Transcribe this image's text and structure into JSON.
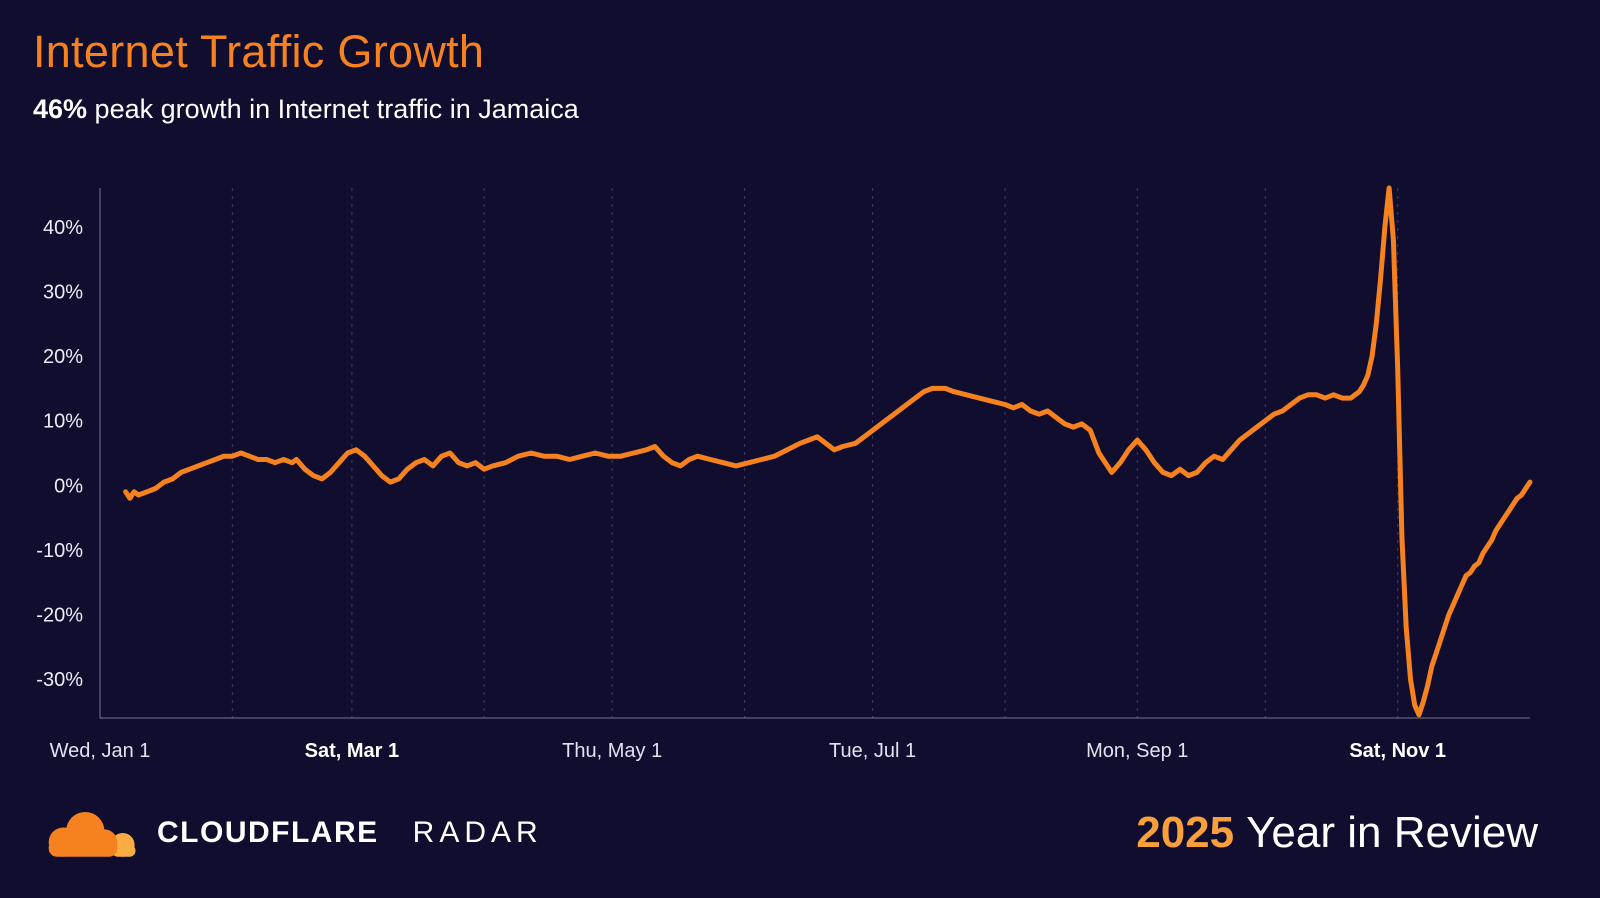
{
  "header": {
    "title": "Internet Traffic Growth",
    "subtitle_highlight": "46%",
    "subtitle_rest": " peak growth in Internet traffic in Jamaica"
  },
  "footer": {
    "brand": "CLOUDFLARE",
    "product": "RADAR",
    "year": "2025",
    "review_label": "Year in Review"
  },
  "colors": {
    "background": "#100d2e",
    "accent_orange": "#f6821f",
    "accent_orange_light": "#fbad41",
    "year_orange": "#f9a03c",
    "text": "#ffffff",
    "gridline": "#403e66"
  },
  "chart_data": {
    "type": "line",
    "title": "Internet Traffic Growth",
    "subtitle": "46% peak growth in Internet traffic in Jamaica",
    "region": "Jamaica",
    "peak_growth_percent": 46,
    "x_unit": "day_of_year_2025",
    "xlim": [
      0,
      335
    ],
    "ylim": [
      -36,
      46
    ],
    "grid": "vertical-dashed-monthly",
    "legend": "none",
    "line_color": "#f6821f",
    "y_ticks": [
      {
        "value": 40,
        "label": "40%"
      },
      {
        "value": 30,
        "label": "30%"
      },
      {
        "value": 20,
        "label": "20%"
      },
      {
        "value": 10,
        "label": "10%"
      },
      {
        "value": 0,
        "label": "0%"
      },
      {
        "value": -10,
        "label": "-10%"
      },
      {
        "value": -20,
        "label": "-20%"
      },
      {
        "value": -30,
        "label": "-30%"
      }
    ],
    "x_ticks": [
      {
        "day": 0,
        "label": "Wed, Jan 1",
        "bold": false
      },
      {
        "day": 59,
        "label": "Sat, Mar 1",
        "bold": true
      },
      {
        "day": 120,
        "label": "Thu, May 1",
        "bold": false
      },
      {
        "day": 181,
        "label": "Tue, Jul 1",
        "bold": false
      },
      {
        "day": 243,
        "label": "Mon, Sep 1",
        "bold": false
      },
      {
        "day": 304,
        "label": "Sat, Nov 1",
        "bold": true
      }
    ],
    "gridline_days": [
      31,
      59,
      90,
      120,
      151,
      181,
      212,
      243,
      273,
      304
    ],
    "series": [
      {
        "name": "Internet traffic growth (%)",
        "points": [
          [
            6,
            -1
          ],
          [
            7,
            -2
          ],
          [
            8,
            -1
          ],
          [
            9,
            -1.5
          ],
          [
            11,
            -1
          ],
          [
            13,
            -0.5
          ],
          [
            15,
            0.5
          ],
          [
            17,
            1
          ],
          [
            19,
            2
          ],
          [
            21,
            2.5
          ],
          [
            23,
            3
          ],
          [
            25,
            3.5
          ],
          [
            27,
            4
          ],
          [
            29,
            4.5
          ],
          [
            31,
            4.5
          ],
          [
            33,
            5
          ],
          [
            35,
            4.5
          ],
          [
            37,
            4
          ],
          [
            39,
            4
          ],
          [
            41,
            3.5
          ],
          [
            43,
            4
          ],
          [
            45,
            3.5
          ],
          [
            46,
            4
          ],
          [
            48,
            2.5
          ],
          [
            50,
            1.5
          ],
          [
            52,
            1
          ],
          [
            54,
            2
          ],
          [
            56,
            3.5
          ],
          [
            58,
            5
          ],
          [
            60,
            5.5
          ],
          [
            62,
            4.5
          ],
          [
            64,
            3
          ],
          [
            66,
            1.5
          ],
          [
            68,
            0.5
          ],
          [
            70,
            1
          ],
          [
            72,
            2.5
          ],
          [
            74,
            3.5
          ],
          [
            76,
            4
          ],
          [
            78,
            3
          ],
          [
            80,
            4.5
          ],
          [
            82,
            5
          ],
          [
            84,
            3.5
          ],
          [
            86,
            3
          ],
          [
            88,
            3.5
          ],
          [
            90,
            2.5
          ],
          [
            92,
            3
          ],
          [
            95,
            3.5
          ],
          [
            98,
            4.5
          ],
          [
            101,
            5
          ],
          [
            104,
            4.5
          ],
          [
            107,
            4.5
          ],
          [
            110,
            4
          ],
          [
            113,
            4.5
          ],
          [
            116,
            5
          ],
          [
            119,
            4.5
          ],
          [
            122,
            4.5
          ],
          [
            125,
            5
          ],
          [
            128,
            5.5
          ],
          [
            130,
            6
          ],
          [
            132,
            4.5
          ],
          [
            134,
            3.5
          ],
          [
            136,
            3
          ],
          [
            138,
            4
          ],
          [
            140,
            4.5
          ],
          [
            143,
            4
          ],
          [
            146,
            3.5
          ],
          [
            149,
            3
          ],
          [
            152,
            3.5
          ],
          [
            155,
            4
          ],
          [
            158,
            4.5
          ],
          [
            161,
            5.5
          ],
          [
            164,
            6.5
          ],
          [
            166,
            7
          ],
          [
            168,
            7.5
          ],
          [
            170,
            6.5
          ],
          [
            172,
            5.5
          ],
          [
            174,
            6
          ],
          [
            177,
            6.5
          ],
          [
            180,
            8
          ],
          [
            183,
            9.5
          ],
          [
            186,
            11
          ],
          [
            189,
            12.5
          ],
          [
            191,
            13.5
          ],
          [
            193,
            14.5
          ],
          [
            195,
            15
          ],
          [
            198,
            15
          ],
          [
            200,
            14.5
          ],
          [
            203,
            14
          ],
          [
            206,
            13.5
          ],
          [
            209,
            13
          ],
          [
            212,
            12.5
          ],
          [
            214,
            12
          ],
          [
            216,
            12.5
          ],
          [
            218,
            11.5
          ],
          [
            220,
            11
          ],
          [
            222,
            11.5
          ],
          [
            224,
            10.5
          ],
          [
            226,
            9.5
          ],
          [
            228,
            9
          ],
          [
            230,
            9.5
          ],
          [
            232,
            8.5
          ],
          [
            234,
            5
          ],
          [
            236,
            3
          ],
          [
            237,
            2
          ],
          [
            239,
            3.5
          ],
          [
            241,
            5.5
          ],
          [
            243,
            7
          ],
          [
            245,
            5.5
          ],
          [
            247,
            3.5
          ],
          [
            249,
            2
          ],
          [
            251,
            1.5
          ],
          [
            253,
            2.5
          ],
          [
            255,
            1.5
          ],
          [
            257,
            2
          ],
          [
            259,
            3.5
          ],
          [
            261,
            4.5
          ],
          [
            263,
            4
          ],
          [
            265,
            5.5
          ],
          [
            267,
            7
          ],
          [
            269,
            8
          ],
          [
            271,
            9
          ],
          [
            273,
            10
          ],
          [
            275,
            11
          ],
          [
            277,
            11.5
          ],
          [
            279,
            12.5
          ],
          [
            281,
            13.5
          ],
          [
            283,
            14
          ],
          [
            285,
            14
          ],
          [
            287,
            13.5
          ],
          [
            289,
            14
          ],
          [
            291,
            13.5
          ],
          [
            293,
            13.5
          ],
          [
            295,
            14.5
          ],
          [
            296,
            15.5
          ],
          [
            297,
            17
          ],
          [
            298,
            20
          ],
          [
            299,
            25
          ],
          [
            300,
            32
          ],
          [
            301,
            40
          ],
          [
            302,
            46
          ],
          [
            303,
            38
          ],
          [
            304,
            18
          ],
          [
            305,
            -8
          ],
          [
            306,
            -22
          ],
          [
            307,
            -30
          ],
          [
            308,
            -34
          ],
          [
            309,
            -35.5
          ],
          [
            310,
            -33.5
          ],
          [
            311,
            -31
          ],
          [
            312,
            -28
          ],
          [
            313,
            -26
          ],
          [
            314,
            -24
          ],
          [
            315,
            -22
          ],
          [
            316,
            -20
          ],
          [
            317,
            -18.5
          ],
          [
            318,
            -17
          ],
          [
            319,
            -15.5
          ],
          [
            320,
            -14
          ],
          [
            321,
            -13.5
          ],
          [
            322,
            -12.5
          ],
          [
            323,
            -12
          ],
          [
            324,
            -10.5
          ],
          [
            325,
            -9.5
          ],
          [
            326,
            -8.5
          ],
          [
            327,
            -7
          ],
          [
            328,
            -6
          ],
          [
            329,
            -5
          ],
          [
            330,
            -4
          ],
          [
            331,
            -3
          ],
          [
            332,
            -2
          ],
          [
            333,
            -1.5
          ],
          [
            334,
            -0.5
          ],
          [
            335,
            0.5
          ]
        ]
      }
    ]
  }
}
